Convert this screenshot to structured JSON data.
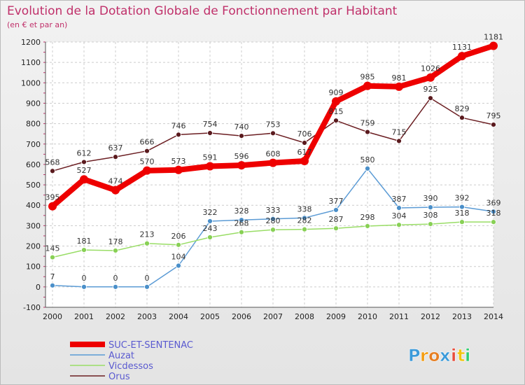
{
  "chart_data": {
    "type": "line",
    "title": "Evolution de la Dotation Globale de Fonctionnement par Habitant",
    "subtitle": "(en € et par an)",
    "x": [
      "2000",
      "2001",
      "2002",
      "2003",
      "2004",
      "2005",
      "2006",
      "2007",
      "2008",
      "2009",
      "2010",
      "2011",
      "2012",
      "2013",
      "2014"
    ],
    "ylim": [
      -100,
      1200
    ],
    "yticks": [
      -100,
      0,
      100,
      200,
      300,
      400,
      500,
      600,
      700,
      800,
      900,
      1000,
      1100,
      1200
    ],
    "grid": true,
    "legend_position": "bottom-left",
    "series": [
      {
        "name": "SUC-ET-SENTENAC",
        "color": "#ee0000",
        "values": [
          395,
          527,
          474,
          570,
          573,
          591,
          596,
          608,
          617,
          909,
          985,
          981,
          1026,
          1131,
          1181
        ]
      },
      {
        "name": "Auzat",
        "color": "#5b9bd5",
        "values": [
          7,
          0,
          0,
          0,
          104,
          322,
          328,
          333,
          338,
          377,
          580,
          387,
          390,
          392,
          369
        ]
      },
      {
        "name": "Vicdessos",
        "color": "#99dd66",
        "values": [
          145,
          181,
          178,
          213,
          206,
          243,
          268,
          280,
          282,
          287,
          298,
          304,
          308,
          318,
          318
        ]
      },
      {
        "name": "Orus",
        "color": "#6b1e22",
        "values": [
          568,
          612,
          637,
          666,
          746,
          754,
          740,
          753,
          706,
          815,
          759,
          715,
          925,
          829,
          795
        ]
      }
    ]
  },
  "brand": {
    "letters": [
      "P",
      "r",
      "o",
      "x",
      "i",
      "t",
      "i"
    ],
    "colors": [
      "#3b9ad9",
      "#f39c12",
      "#e67e22",
      "#3b9ad9",
      "#e74c3c",
      "#f1c40f",
      "#2ecc71"
    ]
  }
}
